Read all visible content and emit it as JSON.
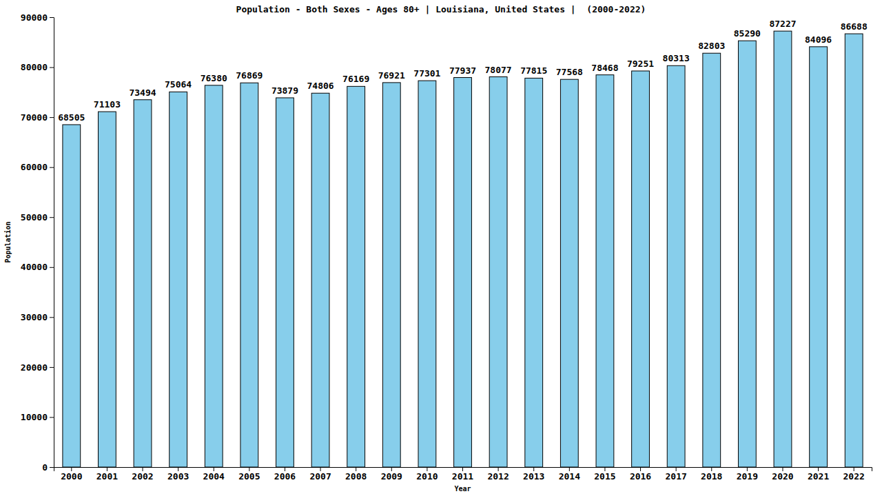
{
  "chart_data": {
    "type": "bar",
    "title": "Population - Both Sexes - Ages 80+ | Louisiana, United States |  (2000-2022)",
    "x_label": "Year",
    "y_label": "Population",
    "categories": [
      "2000",
      "2001",
      "2002",
      "2003",
      "2004",
      "2005",
      "2006",
      "2007",
      "2008",
      "2009",
      "2010",
      "2011",
      "2012",
      "2013",
      "2014",
      "2015",
      "2016",
      "2017",
      "2018",
      "2019",
      "2020",
      "2021",
      "2022"
    ],
    "values": [
      68505,
      71103,
      73494,
      75064,
      76380,
      76869,
      73879,
      74806,
      76169,
      76921,
      77301,
      77937,
      78077,
      77815,
      77568,
      78468,
      79251,
      80313,
      82803,
      85290,
      87227,
      84096,
      86688
    ],
    "color": "#87ceeb",
    "ylim": [
      0,
      90000
    ],
    "yticks": [
      0,
      10000,
      20000,
      30000,
      40000,
      50000,
      60000,
      70000,
      80000,
      90000
    ],
    "grid": false,
    "data_labels": true
  }
}
